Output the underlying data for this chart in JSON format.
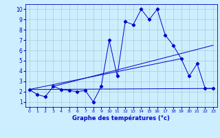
{
  "xlabel": "Graphe des températures (°c)",
  "bg_color": "#cceeff",
  "grid_color": "#aacccc",
  "line_color": "#0000cc",
  "hours": [
    0,
    1,
    2,
    3,
    4,
    5,
    6,
    7,
    8,
    9,
    10,
    11,
    12,
    13,
    14,
    15,
    16,
    17,
    18,
    19,
    20,
    21,
    22,
    23
  ],
  "temp_main": [
    2.2,
    1.7,
    1.5,
    2.5,
    2.2,
    2.1,
    2.0,
    2.1,
    1.0,
    2.5,
    7.0,
    3.5,
    8.8,
    8.5,
    10.0,
    9.0,
    10.0,
    7.5,
    6.5,
    5.2,
    3.5,
    4.7,
    2.3,
    2.3
  ],
  "line2_x": [
    0,
    23
  ],
  "line2_y": [
    2.2,
    2.3
  ],
  "line3_x": [
    0,
    19
  ],
  "line3_y": [
    2.2,
    5.2
  ],
  "line4_x": [
    3,
    23
  ],
  "line4_y": [
    2.5,
    6.5
  ],
  "ylim": [
    0.5,
    10.5
  ],
  "xlim": [
    -0.5,
    23.5
  ],
  "yticks": [
    1,
    2,
    3,
    4,
    5,
    6,
    7,
    8,
    9,
    10
  ],
  "xticks": [
    0,
    1,
    2,
    3,
    4,
    5,
    6,
    7,
    8,
    9,
    10,
    11,
    12,
    13,
    14,
    15,
    16,
    17,
    18,
    19,
    20,
    21,
    22,
    23
  ]
}
